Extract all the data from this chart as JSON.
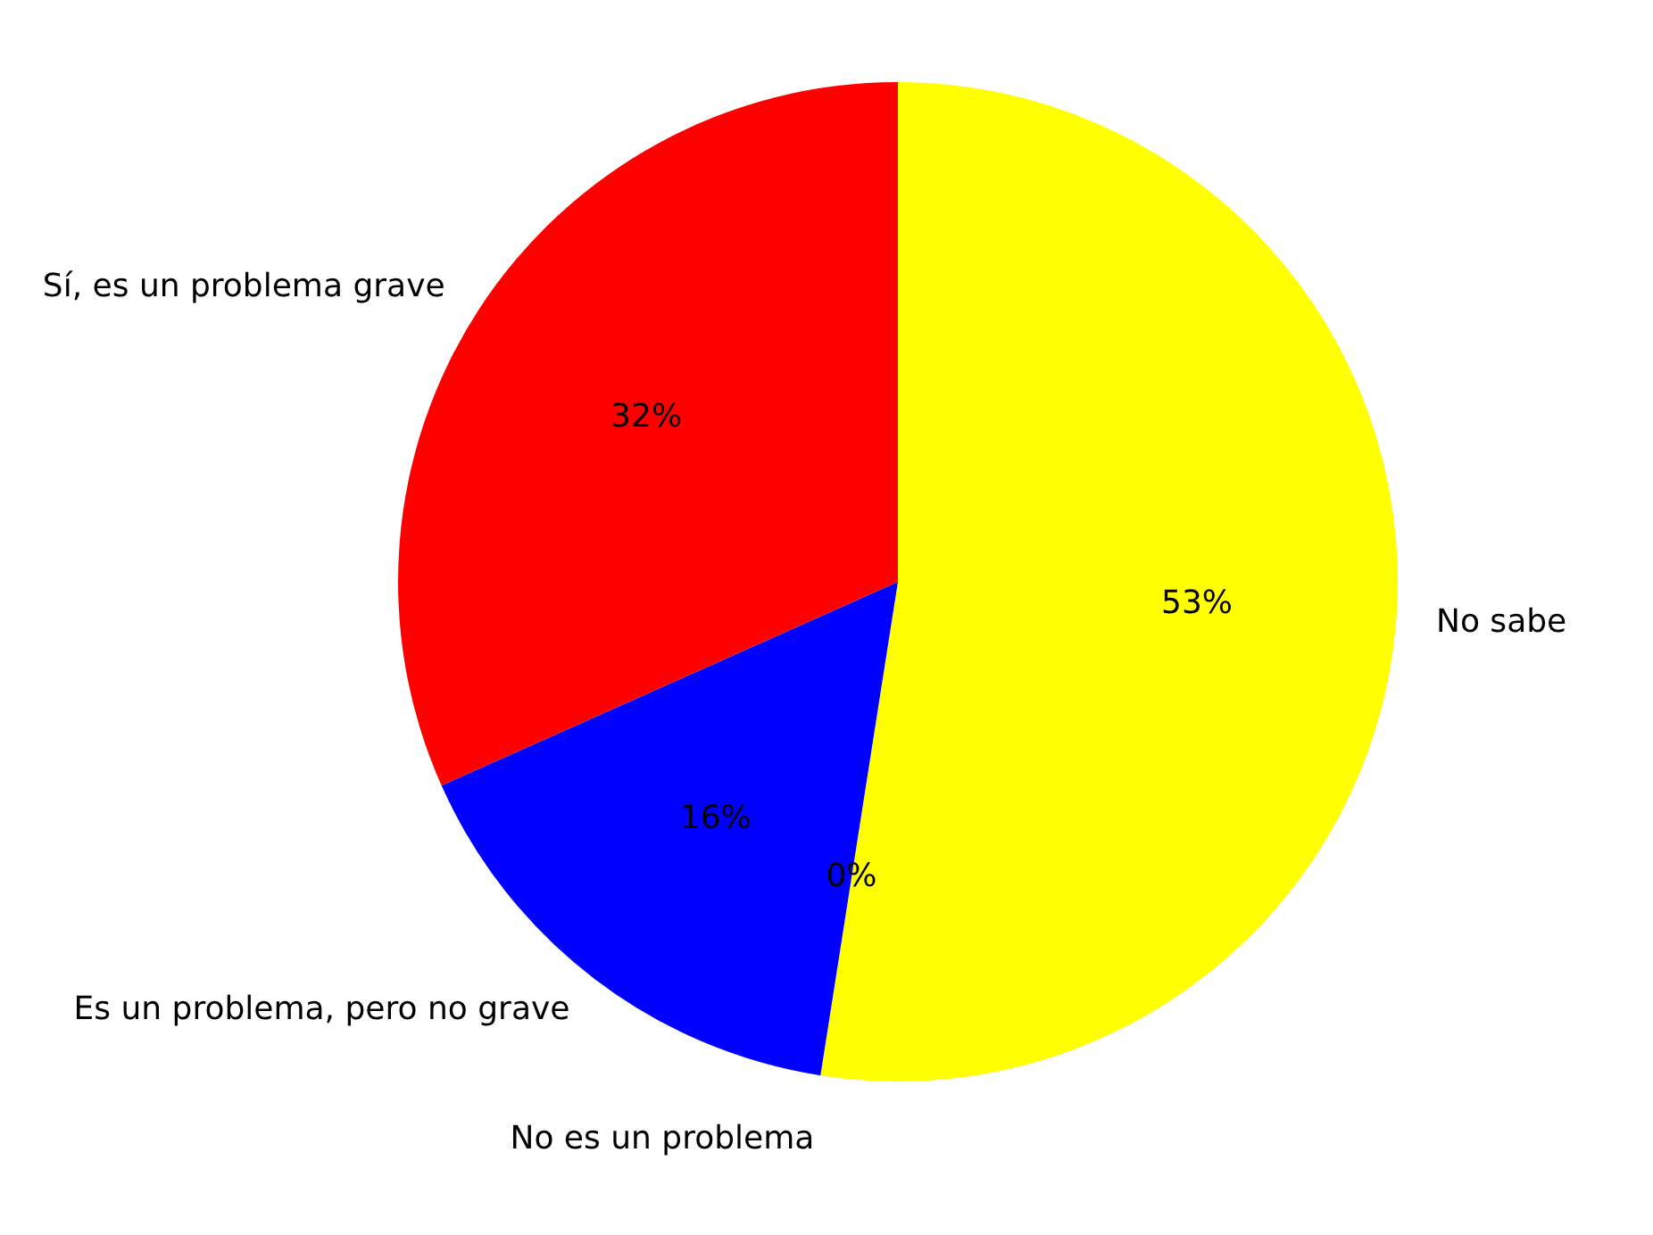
{
  "chart_data": {
    "type": "pie",
    "categories": [
      "No sabe",
      "No es un problema",
      "Es un problema, pero no grave",
      "Sí, es un problema grave"
    ],
    "values": [
      53,
      0,
      16,
      32
    ],
    "value_labels": [
      "53%",
      "0%",
      "16%",
      "32%"
    ],
    "colors": [
      "#ffff00",
      "#008000",
      "#0000ff",
      "#ff0000"
    ],
    "legend": false
  }
}
